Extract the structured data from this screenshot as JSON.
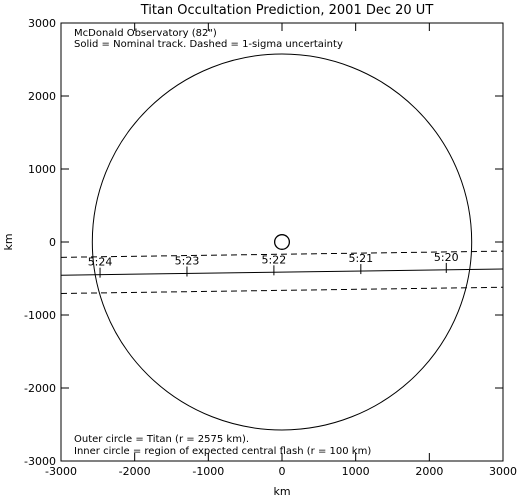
{
  "chart_data": {
    "type": "scatter",
    "title": "Titan Occultation Prediction, 2001 Dec 20 UT",
    "xlabel": "km",
    "ylabel": "km",
    "xlim": [
      -3000,
      3000
    ],
    "ylim": [
      -3000,
      3000
    ],
    "x_ticks": [
      -3000,
      -2000,
      -1000,
      0,
      1000,
      2000,
      3000
    ],
    "y_ticks": [
      -3000,
      -2000,
      -1000,
      0,
      1000,
      2000,
      3000
    ],
    "grid": false,
    "annotations_top": [
      "McDonald Observatory (82\")",
      "Solid = Nominal track.  Dashed = 1-sigma uncertainty"
    ],
    "annotations_bottom": [
      "Outer circle = Titan (r = 2575 km).",
      "Inner circle = region of expected central flash (r = 100 km)"
    ],
    "circles": [
      {
        "cx": 0,
        "cy": 0,
        "r": 2575
      },
      {
        "cx": 0,
        "cy": 0,
        "r": 100
      }
    ],
    "nominal_track": {
      "x": [
        -3000,
        3000
      ],
      "y": [
        -455,
        -370
      ]
    },
    "uncertainty_upper": {
      "x": [
        -3000,
        3000
      ],
      "y": [
        -210,
        -125
      ]
    },
    "uncertainty_lower": {
      "x": [
        -3000,
        3000
      ],
      "y": [
        -705,
        -620
      ]
    },
    "time_marks": [
      {
        "label": "5:24",
        "x": -2470,
        "y": -420
      },
      {
        "label": "5:23",
        "x": -1290,
        "y": -404
      },
      {
        "label": "5:22",
        "x": -110,
        "y": -388
      },
      {
        "label": "5:21",
        "x": 1070,
        "y": -371
      },
      {
        "label": "5:20",
        "x": 2230,
        "y": -355
      }
    ]
  }
}
